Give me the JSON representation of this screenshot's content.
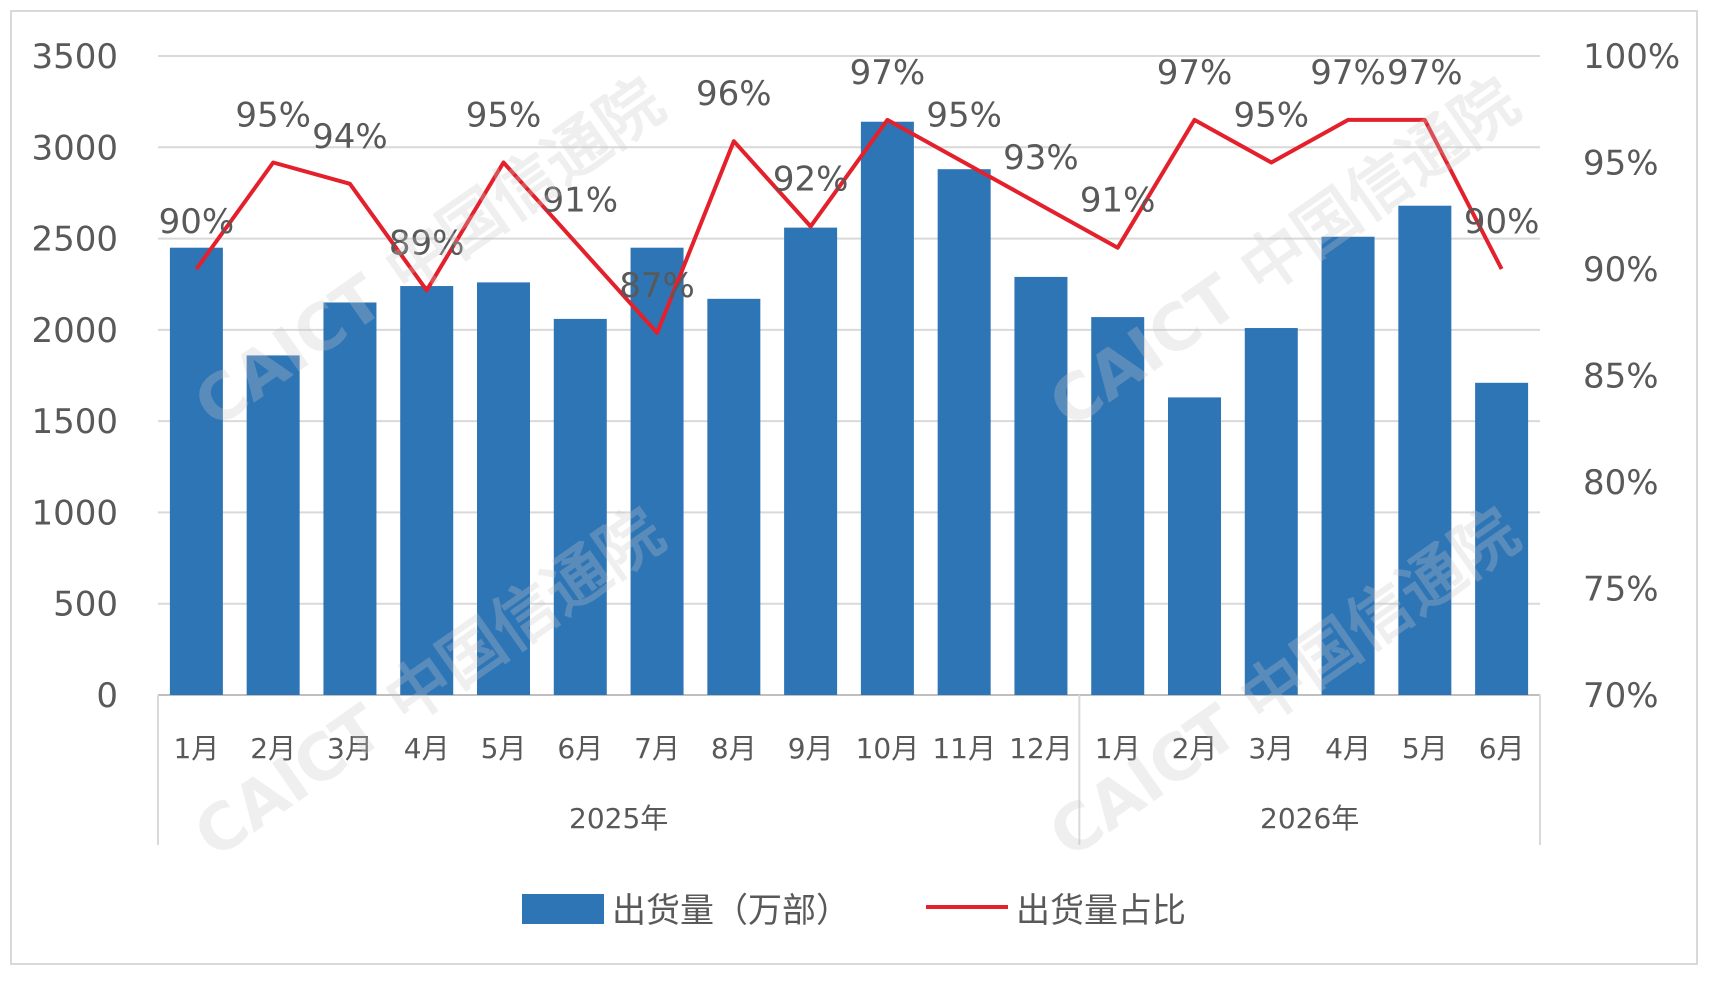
{
  "chart_data": {
    "type": "bar",
    "categories": [
      "1月",
      "2月",
      "3月",
      "4月",
      "5月",
      "6月",
      "7月",
      "8月",
      "9月",
      "10月",
      "11月",
      "12月",
      "1月",
      "2月",
      "3月",
      "4月",
      "5月",
      "6月"
    ],
    "groups": [
      {
        "label": "2025年",
        "start": 0,
        "end": 11
      },
      {
        "label": "2026年",
        "start": 12,
        "end": 17
      }
    ],
    "series": [
      {
        "name": "出货量（万部）",
        "type": "bar",
        "axis": "left",
        "color": "#2E75B6",
        "values": [
          2450,
          1860,
          2150,
          2240,
          2260,
          2060,
          2450,
          2170,
          2560,
          3140,
          2880,
          2290,
          2070,
          1630,
          2010,
          2510,
          2680,
          1710
        ]
      },
      {
        "name": "出货量占比",
        "type": "line",
        "axis": "right",
        "color": "#E3202B",
        "values": [
          90,
          95,
          94,
          89,
          95,
          91,
          87,
          96,
          92,
          97,
          95,
          93,
          91,
          97,
          95,
          97,
          97,
          90
        ],
        "labels": [
          "90%",
          "95%",
          "94%",
          "89%",
          "95%",
          "91%",
          "87%",
          "96%",
          "92%",
          "97%",
          "95%",
          "93%",
          "91%",
          "97%",
          "95%",
          "97%",
          "97%",
          "90%"
        ]
      }
    ],
    "left_axis": {
      "ylim": [
        0,
        3500
      ],
      "ticks": [
        "0",
        "500",
        "1000",
        "1500",
        "2000",
        "2500",
        "3000",
        "3500"
      ]
    },
    "right_axis": {
      "ylim": [
        70,
        100
      ],
      "ticks": [
        "70%",
        "75%",
        "80%",
        "85%",
        "90%",
        "95%",
        "100%"
      ]
    },
    "grid": true,
    "legend_position": "bottom"
  },
  "watermark": {
    "text": "CAICT 中国信通院"
  }
}
